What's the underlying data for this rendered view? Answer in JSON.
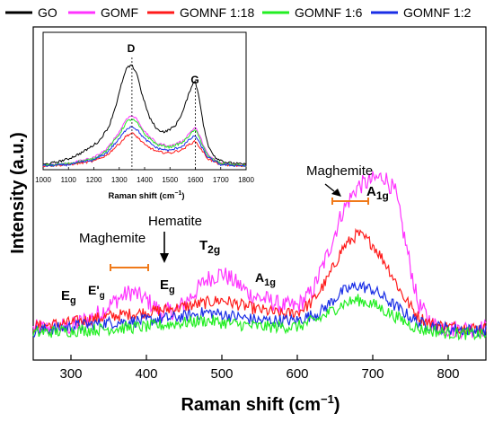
{
  "chart_data": [
    {
      "type": "line",
      "xlabel": "Raman shift (cm",
      "xlabel_sup": "−1",
      "xlabel_close": ")",
      "ylabel": "Intensity (a.u.)",
      "xlim": [
        250,
        850
      ],
      "xticks": [
        300,
        400,
        500,
        600,
        700,
        800
      ],
      "yticks_shown": false,
      "legend_position": "top",
      "legend": [
        {
          "name": "GO",
          "color": "#000000"
        },
        {
          "name": "GOMF",
          "color": "#ff33ff"
        },
        {
          "name": "GOMNF 1:18",
          "color": "#ff1a1a"
        },
        {
          "name": "GOMNF 1:6",
          "color": "#22ee22"
        },
        {
          "name": "GOMNF 1:2",
          "color": "#1a2ee6"
        }
      ],
      "series": [
        {
          "name": "GOMF",
          "color": "#ff33ff",
          "x": [
            250,
            300,
            340,
            360,
            380,
            400,
            420,
            440,
            460,
            480,
            500,
            520,
            540,
            560,
            580,
            600,
            620,
            640,
            660,
            680,
            700,
            715,
            730,
            745,
            760,
            780,
            800,
            850
          ],
          "y": [
            0.06,
            0.07,
            0.14,
            0.2,
            0.24,
            0.2,
            0.14,
            0.15,
            0.22,
            0.3,
            0.33,
            0.28,
            0.22,
            0.2,
            0.17,
            0.17,
            0.24,
            0.42,
            0.63,
            0.75,
            0.78,
            0.8,
            0.72,
            0.45,
            0.18,
            0.08,
            0.06,
            0.06
          ]
        },
        {
          "name": "GOMNF 1:18",
          "color": "#ff1a1a",
          "x": [
            250,
            300,
            350,
            400,
            440,
            470,
            500,
            540,
            580,
            600,
            620,
            640,
            660,
            680,
            700,
            720,
            740,
            760,
            780,
            800,
            850
          ],
          "y": [
            0.07,
            0.09,
            0.12,
            0.14,
            0.16,
            0.18,
            0.2,
            0.16,
            0.13,
            0.14,
            0.19,
            0.3,
            0.45,
            0.52,
            0.47,
            0.36,
            0.22,
            0.12,
            0.08,
            0.07,
            0.06
          ]
        },
        {
          "name": "GOMNF 1:2",
          "color": "#1a2ee6",
          "x": [
            250,
            300,
            350,
            400,
            450,
            480,
            500,
            550,
            600,
            630,
            660,
            680,
            700,
            730,
            760,
            800,
            850
          ],
          "y": [
            0.05,
            0.07,
            0.09,
            0.1,
            0.12,
            0.14,
            0.13,
            0.1,
            0.1,
            0.14,
            0.24,
            0.27,
            0.25,
            0.17,
            0.09,
            0.06,
            0.05
          ]
        },
        {
          "name": "GOMNF 1:6",
          "color": "#22ee22",
          "x": [
            250,
            300,
            350,
            400,
            450,
            480,
            500,
            550,
            600,
            630,
            660,
            680,
            700,
            730,
            760,
            800,
            850
          ],
          "y": [
            0.04,
            0.05,
            0.06,
            0.07,
            0.09,
            0.1,
            0.09,
            0.07,
            0.07,
            0.11,
            0.18,
            0.2,
            0.18,
            0.12,
            0.06,
            0.04,
            0.03
          ]
        }
      ],
      "annotations": [
        {
          "id": "eg-1",
          "text": "E",
          "sub": "g",
          "x": 298
        },
        {
          "id": "eg-prime",
          "text": "E'",
          "sub": "g",
          "x": 330
        },
        {
          "id": "maghemite-low",
          "text": "Maghemite",
          "x": 380
        },
        {
          "id": "hematite",
          "text": "Hematite",
          "x": 440
        },
        {
          "id": "eg-2",
          "text": "E",
          "sub": "g",
          "x": 430
        },
        {
          "id": "t2g",
          "text": "T",
          "sub": "2g",
          "x": 500
        },
        {
          "id": "a1g-low",
          "text": "A",
          "sub": "1g",
          "x": 556
        },
        {
          "id": "maghemite-high",
          "text": "Maghemite",
          "x": 670
        },
        {
          "id": "a1g-high",
          "text": "A",
          "sub": "1g",
          "x": 690
        }
      ]
    },
    {
      "type": "line",
      "xlabel": "Raman shift (cm",
      "xlabel_sup": "−1",
      "xlabel_close": ")",
      "xlim": [
        1000,
        1800
      ],
      "xticks": [
        1000,
        1100,
        1200,
        1300,
        1400,
        1500,
        1600,
        1700,
        1800
      ],
      "peak_labels": [
        {
          "text": "D",
          "x": 1350
        },
        {
          "text": "G",
          "x": 1600
        }
      ],
      "series": [
        {
          "name": "GO",
          "color": "#000000",
          "x": [
            1000,
            1050,
            1100,
            1150,
            1180,
            1220,
            1260,
            1290,
            1310,
            1330,
            1350,
            1370,
            1390,
            1420,
            1450,
            1480,
            1520,
            1550,
            1570,
            1590,
            1600,
            1615,
            1630,
            1650,
            1680,
            1720,
            1760,
            1800
          ],
          "y": [
            0.02,
            0.04,
            0.07,
            0.12,
            0.16,
            0.22,
            0.35,
            0.55,
            0.72,
            0.85,
            0.87,
            0.8,
            0.62,
            0.42,
            0.32,
            0.3,
            0.35,
            0.47,
            0.6,
            0.72,
            0.73,
            0.6,
            0.38,
            0.18,
            0.08,
            0.04,
            0.03,
            0.02
          ]
        },
        {
          "name": "GOMF",
          "color": "#ff33ff",
          "x": [
            1000,
            1100,
            1200,
            1250,
            1300,
            1330,
            1350,
            1370,
            1400,
            1450,
            1500,
            1550,
            1580,
            1600,
            1620,
            1650,
            1700,
            1800
          ],
          "y": [
            0.01,
            0.03,
            0.08,
            0.15,
            0.3,
            0.42,
            0.44,
            0.41,
            0.3,
            0.2,
            0.18,
            0.22,
            0.3,
            0.34,
            0.25,
            0.1,
            0.03,
            0.01
          ]
        },
        {
          "name": "GOMNF 1:18",
          "color": "#ff1a1a",
          "x": [
            1000,
            1100,
            1200,
            1250,
            1300,
            1330,
            1350,
            1370,
            1400,
            1450,
            1500,
            1550,
            1580,
            1600,
            1620,
            1650,
            1700,
            1800
          ],
          "y": [
            0.01,
            0.02,
            0.05,
            0.1,
            0.2,
            0.27,
            0.29,
            0.26,
            0.19,
            0.13,
            0.12,
            0.15,
            0.2,
            0.22,
            0.16,
            0.07,
            0.02,
            0.01
          ]
        },
        {
          "name": "GOMNF 1:6",
          "color": "#22ee22",
          "x": [
            1000,
            1100,
            1200,
            1250,
            1300,
            1330,
            1350,
            1370,
            1400,
            1450,
            1500,
            1550,
            1580,
            1600,
            1620,
            1650,
            1700,
            1800
          ],
          "y": [
            0.01,
            0.03,
            0.07,
            0.14,
            0.28,
            0.39,
            0.41,
            0.38,
            0.28,
            0.19,
            0.17,
            0.21,
            0.28,
            0.32,
            0.23,
            0.09,
            0.03,
            0.01
          ]
        },
        {
          "name": "GOMNF 1:2",
          "color": "#1a2ee6",
          "x": [
            1000,
            1100,
            1200,
            1250,
            1300,
            1330,
            1350,
            1370,
            1400,
            1450,
            1500,
            1550,
            1580,
            1600,
            1620,
            1650,
            1700,
            1800
          ],
          "y": [
            0.01,
            0.02,
            0.06,
            0.12,
            0.24,
            0.33,
            0.35,
            0.32,
            0.24,
            0.16,
            0.14,
            0.18,
            0.24,
            0.27,
            0.19,
            0.08,
            0.02,
            0.01
          ]
        }
      ]
    }
  ]
}
